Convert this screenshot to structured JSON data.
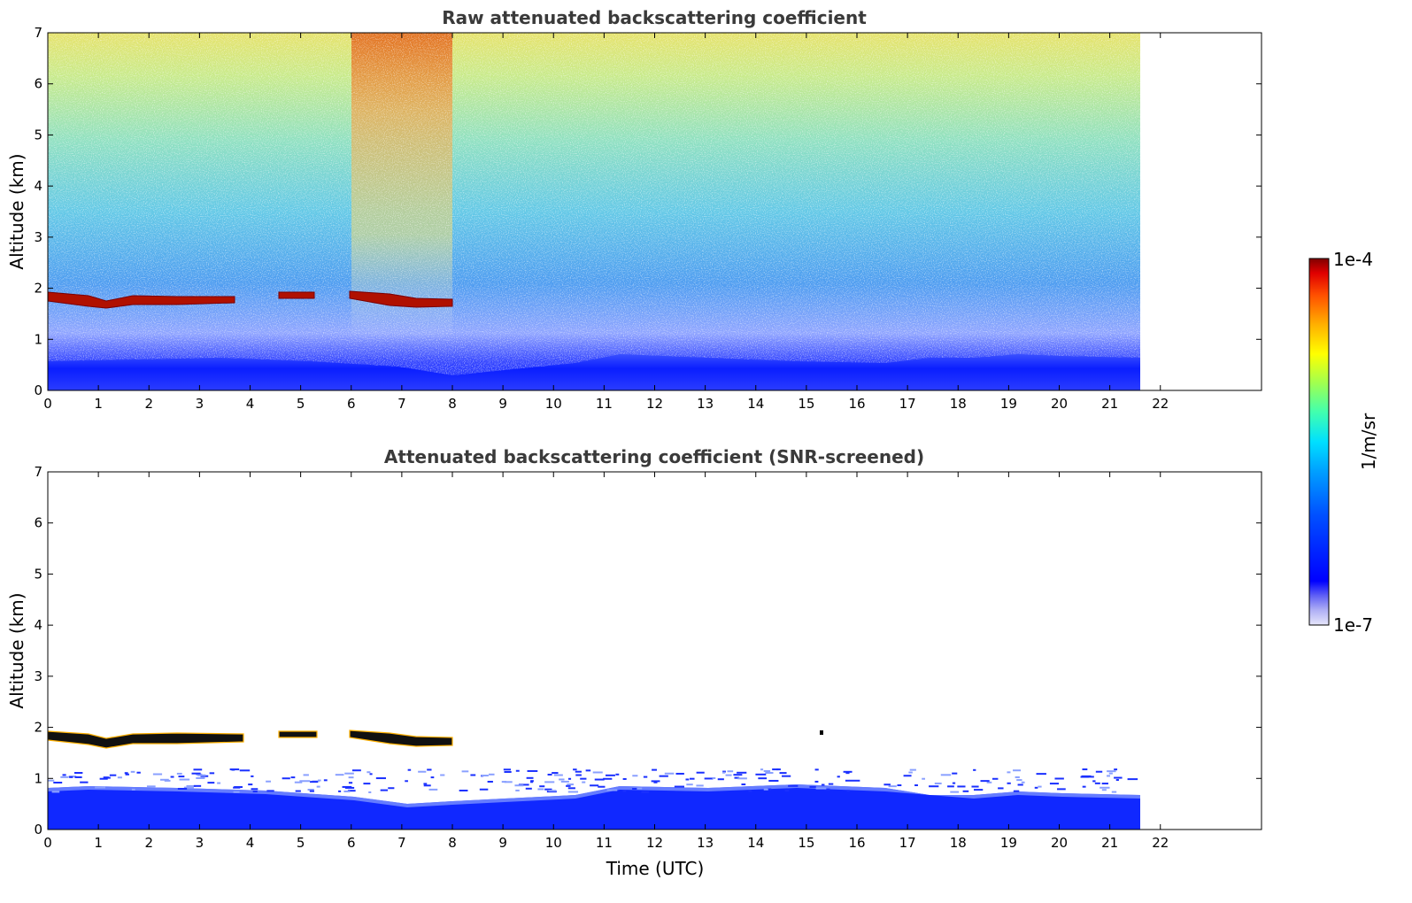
{
  "chart_data": [
    {
      "type": "heatmap",
      "title": "Raw attenuated backscattering coefficient",
      "xlabel": "",
      "ylabel": "Altitude (km)",
      "xlim": [
        0,
        24
      ],
      "ylim": [
        0,
        7
      ],
      "x_ticks": [
        "0",
        "1",
        "2",
        "3",
        "4",
        "5",
        "6",
        "7",
        "8",
        "9",
        "10",
        "11",
        "12",
        "13",
        "14",
        "15",
        "16",
        "17",
        "18",
        "19",
        "20",
        "21",
        "22"
      ],
      "y_ticks": [
        "0",
        "1",
        "2",
        "3",
        "4",
        "5",
        "6",
        "7"
      ],
      "data_extent_hours": [
        0,
        21.6
      ],
      "features": [
        {
          "name": "boundary layer",
          "altitude_km": [
            0,
            0.6
          ],
          "level": "low"
        },
        {
          "name": "cloud layer",
          "time_utc": [
            0,
            8
          ],
          "altitude_km": [
            1.65,
            1.9
          ],
          "level": "high"
        },
        {
          "name": "enhanced background noise",
          "time_utc": [
            6,
            8
          ],
          "altitude_km": [
            3,
            7
          ],
          "level": "high"
        }
      ],
      "grid": false
    },
    {
      "type": "heatmap",
      "title": "Attenuated backscattering coefficient (SNR-screened)",
      "xlabel": "Time (UTC)",
      "ylabel": "Altitude (km)",
      "xlim": [
        0,
        24
      ],
      "ylim": [
        0,
        7
      ],
      "x_ticks": [
        "0",
        "1",
        "2",
        "3",
        "4",
        "5",
        "6",
        "7",
        "8",
        "9",
        "10",
        "11",
        "12",
        "13",
        "14",
        "15",
        "16",
        "17",
        "18",
        "19",
        "20",
        "21",
        "22"
      ],
      "y_ticks": [
        "0",
        "1",
        "2",
        "3",
        "4",
        "5",
        "6",
        "7"
      ],
      "data_extent_hours": [
        0,
        21.6
      ],
      "features": [
        {
          "name": "boundary layer",
          "altitude_km": [
            0,
            0.9
          ],
          "level": "low"
        },
        {
          "name": "cloud layer",
          "time_utc": [
            0,
            8
          ],
          "altitude_km": [
            1.6,
            1.9
          ],
          "level": "saturated"
        }
      ],
      "grid": false
    }
  ],
  "colorbar": {
    "max_label": "1e-4",
    "min_label": "1e-7",
    "unit_label": "1/m/sr",
    "colors": [
      "#e6e6fa",
      "#b0b0f5",
      "#6060f5",
      "#0000ff",
      "#0050ff",
      "#00a0ff",
      "#00e0ff",
      "#40ffb0",
      "#a0ff50",
      "#ffff00",
      "#ffb000",
      "#ff5000",
      "#e00000",
      "#800000"
    ]
  }
}
